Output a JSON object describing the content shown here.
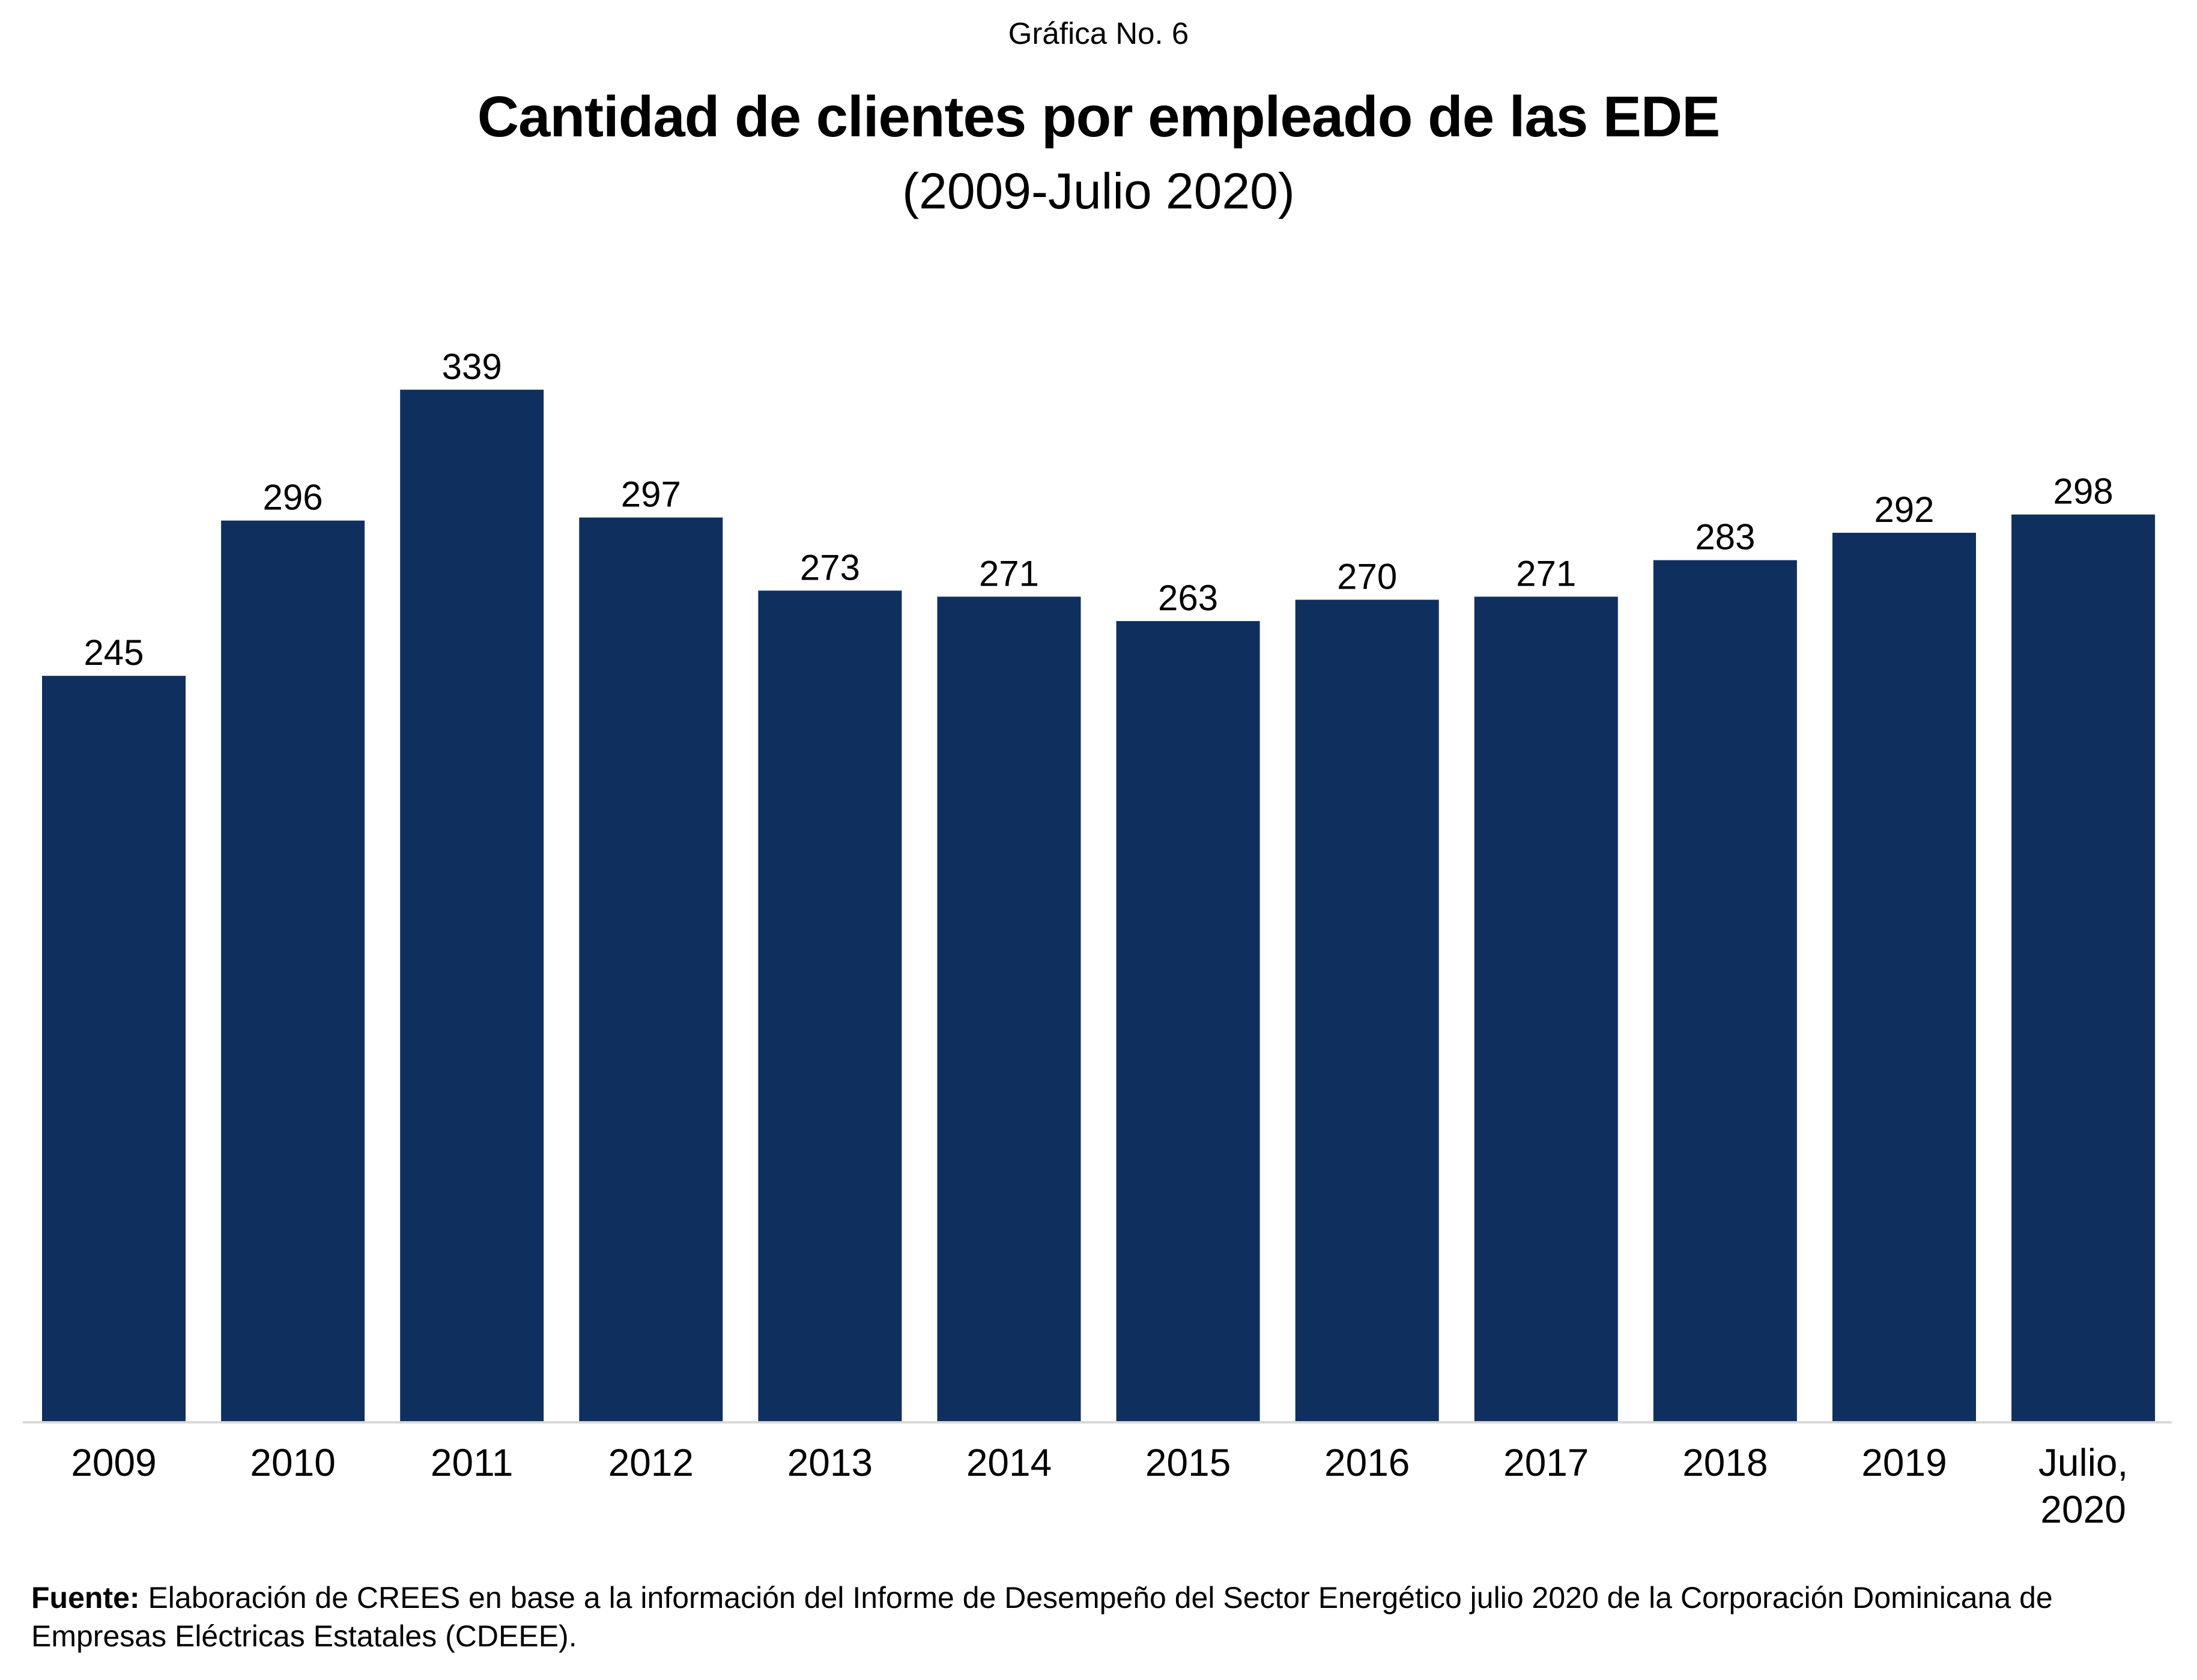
{
  "header": {
    "chart_number": "Gráfica No. 6"
  },
  "chart_data": {
    "type": "bar",
    "title": "Cantidad de clientes por empleado de las EDE",
    "subtitle": "(2009-Julio 2020)",
    "categories": [
      "2009",
      "2010",
      "2011",
      "2012",
      "2013",
      "2014",
      "2015",
      "2016",
      "2017",
      "2018",
      "2019",
      "Julio, 2020"
    ],
    "category_lines": [
      [
        "2009"
      ],
      [
        "2010"
      ],
      [
        "2011"
      ],
      [
        "2012"
      ],
      [
        "2013"
      ],
      [
        "2014"
      ],
      [
        "2015"
      ],
      [
        "2016"
      ],
      [
        "2017"
      ],
      [
        "2018"
      ],
      [
        "2019"
      ],
      [
        "Julio,",
        "2020"
      ]
    ],
    "values": [
      245,
      296,
      339,
      297,
      273,
      271,
      263,
      270,
      271,
      283,
      292,
      298
    ],
    "data_labels": [
      "245",
      "296",
      "339",
      "297",
      "273",
      "271",
      "263",
      "270",
      "271",
      "283",
      "292",
      "298"
    ],
    "xlabel": "",
    "ylabel": "",
    "ylim": [
      0,
      467
    ],
    "y_axis_visible": false,
    "grid": false,
    "legend": "none",
    "bar_color": "#0F305F",
    "axis_color": "#D9D9D9"
  },
  "footnote": {
    "label": "Fuente:",
    "text": " Elaboración de CREES en base a la información del Informe de Desempeño del Sector Energético julio 2020 de la Corporación Dominicana de Empresas Eléctricas Estatales (CDEEE)."
  }
}
